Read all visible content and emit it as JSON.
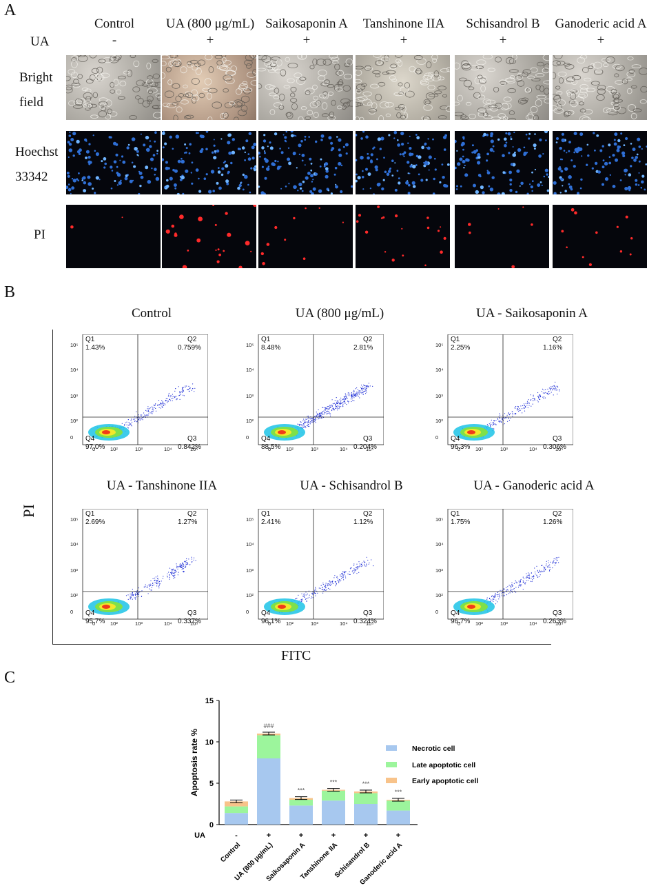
{
  "panel_a": {
    "letter": "A",
    "columns": [
      "Control",
      "UA (800 μg/mL)",
      "Saikosaponin A",
      "Tanshinone IIA",
      "Schisandrol B",
      "Ganoderic acid A"
    ],
    "ua_label": "UA",
    "ua_signs": [
      "-",
      "+",
      "+",
      "+",
      "+",
      "+"
    ],
    "rows": {
      "bright_1": "Bright",
      "bright_2": "field",
      "hoechst_1": "Hoechst",
      "hoechst_2": "33342",
      "pi": "PI"
    },
    "pi_dot_counts": [
      2,
      22,
      10,
      18,
      6,
      12
    ]
  },
  "panel_b": {
    "letter": "B",
    "y_label": "PI",
    "x_label": "FITC",
    "plots": [
      {
        "title": "Control",
        "q1": "Q1",
        "q1v": "1.43%",
        "q2": "Q2",
        "q2v": "0.759%",
        "q3": "Q3",
        "q3v": "0.842%",
        "q4": "Q4",
        "q4v": "97.0%"
      },
      {
        "title": "UA (800 μg/mL)",
        "q1": "Q1",
        "q1v": "8.48%",
        "q2": "Q2",
        "q2v": "2.81%",
        "q3": "Q3",
        "q3v": "0.204%",
        "q4": "Q4",
        "q4v": "88.5%"
      },
      {
        "title": "UA - Saikosaponin A",
        "q1": "Q1",
        "q1v": "2.25%",
        "q2": "Q2",
        "q2v": "1.16%",
        "q3": "Q3",
        "q3v": "0.306%",
        "q4": "Q4",
        "q4v": "96.3%"
      },
      {
        "title": "UA - Tanshinone IIA",
        "q1": "Q1",
        "q1v": "2.69%",
        "q2": "Q2",
        "q2v": "1.27%",
        "q3": "Q3",
        "q3v": "0.337%",
        "q4": "Q4",
        "q4v": "95.7%"
      },
      {
        "title": "UA - Schisandrol B",
        "q1": "Q1",
        "q1v": "2.41%",
        "q2": "Q2",
        "q2v": "1.12%",
        "q3": "Q3",
        "q3v": "0.324%",
        "q4": "Q4",
        "q4v": "96.1%"
      },
      {
        "title": "UA - Ganoderic acid A",
        "q1": "Q1",
        "q1v": "1.75%",
        "q2": "Q2",
        "q2v": "1.26%",
        "q3": "Q3",
        "q3v": "0.263%",
        "q4": "Q4",
        "q4v": "96.7%"
      }
    ],
    "y_ticks": [
      "10⁵",
      "10⁴",
      "10³",
      "10²",
      "0"
    ],
    "x_ticks": [
      "0",
      "10²",
      "10³",
      "10⁴",
      "10⁵"
    ]
  },
  "panel_c": {
    "letter": "C",
    "ua_label": "UA",
    "ua_signs": [
      "-",
      "+",
      "+",
      "+",
      "+",
      "+"
    ],
    "colors": {
      "necrotic": "#a7c8ef",
      "late": "#9cf59c",
      "early": "#f8c38a"
    }
  },
  "chart_data": {
    "type": "bar",
    "stacked": true,
    "categories": [
      "Control",
      "UA (800 μg/mL)",
      "Saikosaponin A",
      "Tanshinone IIA",
      "Schisandrol B",
      "Ganoderic acid A"
    ],
    "series": [
      {
        "name": "Necrotic cell",
        "values": [
          1.4,
          8.0,
          2.3,
          2.9,
          2.5,
          1.7
        ]
      },
      {
        "name": "Late apoptotic cell",
        "values": [
          0.8,
          2.8,
          0.7,
          1.2,
          1.3,
          1.2
        ]
      },
      {
        "name": "Early apoptotic cell",
        "values": [
          0.6,
          0.2,
          0.2,
          0.1,
          0.2,
          0.1
        ]
      }
    ],
    "annotations": [
      "",
      "###",
      "***",
      "***",
      "***",
      "***"
    ],
    "ylabel": "Apoptosis rate %",
    "ylim": [
      0,
      15
    ],
    "yticks": [
      0,
      5,
      10,
      15
    ]
  }
}
